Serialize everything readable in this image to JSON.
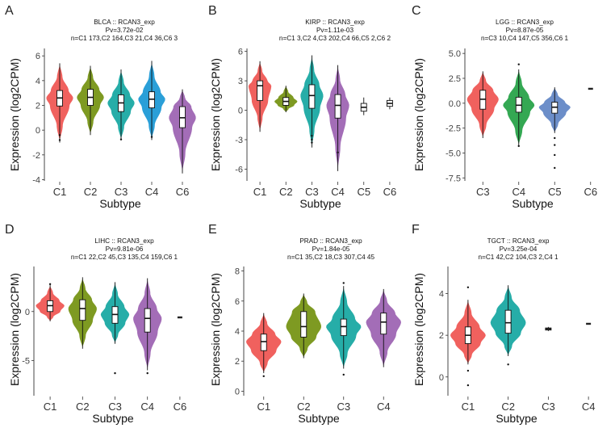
{
  "colors": {
    "C1": "#F0615E",
    "C2": "#7E9A22",
    "C3": "#26ADA8",
    "C4": "#2A9FD8",
    "C5": "#6C8EC9",
    "C6": "#A36DB7"
  },
  "chart_data": [
    {
      "panel": "A",
      "type": "violin",
      "title": "BLCA :: RCAN3_exp",
      "pvalue": "Pv=3.72e-02",
      "counts": "n=C1 173,C2 164,C3 21,C4 36,C6 3",
      "xlabel": "Subtype",
      "ylabel": "Expression (log2CPM)",
      "ylim": [
        -4.1,
        6.6
      ],
      "yticks": [
        -4,
        -2,
        0,
        2,
        4,
        6
      ],
      "categories": [
        "C1",
        "C2",
        "C3",
        "C4",
        "C6"
      ],
      "series": [
        {
          "name": "C1",
          "color": "#F0615E",
          "min": -1.0,
          "q1": 1.95,
          "median": 2.6,
          "q3": 3.2,
          "max": 5.4,
          "outliers": [
            -0.4,
            -0.8
          ]
        },
        {
          "name": "C2",
          "color": "#7E9A22",
          "min": -0.4,
          "q1": 2.0,
          "median": 2.65,
          "q3": 3.3,
          "max": 5.2,
          "outliers": []
        },
        {
          "name": "C3",
          "color": "#26ADA8",
          "min": -0.8,
          "q1": 1.5,
          "median": 2.2,
          "q3": 2.85,
          "max": 4.9,
          "outliers": [
            -0.75
          ]
        },
        {
          "name": "C4",
          "color": "#2A9FD8",
          "min": -0.8,
          "q1": 1.8,
          "median": 2.5,
          "q3": 3.1,
          "max": 5.6,
          "outliers": [
            -0.55
          ]
        },
        {
          "name": "C6",
          "color": "#A36DB7",
          "min": -3.5,
          "q1": 0.2,
          "median": 1.0,
          "q3": 1.9,
          "max": 3.3,
          "outliers": []
        }
      ]
    },
    {
      "panel": "B",
      "type": "violin",
      "title": "KIRP :: RCAN3_exp",
      "pvalue": "Pv=1.11e-03",
      "counts": "n=C1 3,C2 4,C3 202,C4 66,C5 2,C6 2",
      "xlabel": "Subtype",
      "ylabel": "Expression (log2CPM)",
      "ylim": [
        -7.2,
        6.3
      ],
      "yticks": [
        -6,
        -3,
        0,
        3,
        6
      ],
      "categories": [
        "C1",
        "C2",
        "C3",
        "C4",
        "C5",
        "C6"
      ],
      "series": [
        {
          "name": "C1",
          "color": "#F0615E",
          "min": -2.2,
          "q1": 1.0,
          "median": 2.5,
          "q3": 3.0,
          "max": 5.0,
          "outliers": []
        },
        {
          "name": "C2",
          "color": "#7E9A22",
          "min": -0.2,
          "q1": 0.5,
          "median": 0.9,
          "q3": 1.3,
          "max": 2.5,
          "outliers": []
        },
        {
          "name": "C3",
          "color": "#26ADA8",
          "min": -3.8,
          "q1": 0.2,
          "median": 1.5,
          "q3": 2.6,
          "max": 5.6,
          "outliers": [
            -2.6,
            -3.0,
            -3.3
          ]
        },
        {
          "name": "C4",
          "color": "#A36DB7",
          "min": -6.2,
          "q1": -0.8,
          "median": 0.5,
          "q3": 1.6,
          "max": 4.6,
          "outliers": [
            -4.3
          ]
        },
        {
          "name": "C5",
          "color": "#A36DB7",
          "min": -0.5,
          "q1": -0.1,
          "median": 0.3,
          "q3": 0.7,
          "max": 1.3,
          "outliers": [],
          "violin": false
        },
        {
          "name": "C6",
          "color": "#A36DB7",
          "min": 0.1,
          "q1": 0.4,
          "median": 0.7,
          "q3": 1.0,
          "max": 1.3,
          "outliers": [],
          "violin": false
        }
      ]
    },
    {
      "panel": "C",
      "type": "violin",
      "title": "LGG :: RCAN3_exp",
      "pvalue": "Pv=8.87e-05",
      "counts": "n=C3 10,C4 147,C5 356,C6 1",
      "xlabel": "Subtype",
      "ylabel": "Expression (log2CPM)",
      "ylim": [
        -7.8,
        5.5
      ],
      "yticks": [
        -7.5,
        -5.0,
        -2.5,
        0.0,
        2.5,
        5.0
      ],
      "categories": [
        "C3",
        "C4",
        "C5",
        "C6"
      ],
      "series": [
        {
          "name": "C3",
          "color": "#F0615E",
          "min": -3.5,
          "q1": -0.6,
          "median": 0.4,
          "q3": 1.3,
          "max": 3.2,
          "outliers": []
        },
        {
          "name": "C4",
          "color": "#34A853",
          "min": -4.3,
          "q1": -0.9,
          "median": -0.2,
          "q3": 0.6,
          "max": 3.4,
          "outliers": [
            -4.3,
            3.9
          ]
        },
        {
          "name": "C5",
          "color": "#6C8EC9",
          "min": -3.0,
          "q1": -1.0,
          "median": -0.4,
          "q3": 0.1,
          "max": 1.6,
          "outliers": [
            -3.5,
            -4.2,
            -5.2,
            -6.5
          ]
        },
        {
          "name": "C6",
          "color": "#6C8EC9",
          "min": 1.45,
          "q1": 1.45,
          "median": 1.45,
          "q3": 1.45,
          "max": 1.45,
          "outliers": [],
          "violin": false
        }
      ]
    },
    {
      "panel": "D",
      "type": "violin",
      "title": "LIHC :: RCAN3_exp",
      "pvalue": "Pv=9.81e-06",
      "counts": "n=C1 22,C2 45,C3 135,C4 159,C6 1",
      "xlabel": "Subtype",
      "ylabel": "Expression (log2CPM)",
      "ylim": [
        -8.6,
        4.6
      ],
      "yticks": [
        -5,
        0
      ],
      "categories": [
        "C1",
        "C2",
        "C3",
        "C4",
        "C6"
      ],
      "series": [
        {
          "name": "C1",
          "color": "#F0615E",
          "min": -1.0,
          "q1": 0.0,
          "median": 0.6,
          "q3": 1.1,
          "max": 2.7,
          "outliers": [
            2.8
          ]
        },
        {
          "name": "C2",
          "color": "#7E9A22",
          "min": -3.8,
          "q1": -0.9,
          "median": 0.3,
          "q3": 1.2,
          "max": 3.5,
          "outliers": []
        },
        {
          "name": "C3",
          "color": "#26ADA8",
          "min": -3.3,
          "q1": -1.2,
          "median": -0.3,
          "q3": 0.5,
          "max": 3.0,
          "outliers": [
            -6.3
          ]
        },
        {
          "name": "C4",
          "color": "#A36DB7",
          "min": -6.0,
          "q1": -2.1,
          "median": -0.7,
          "q3": 0.3,
          "max": 3.4,
          "outliers": [
            -6.3
          ]
        },
        {
          "name": "C6",
          "color": "#A36DB7",
          "min": -0.6,
          "q1": -0.6,
          "median": -0.6,
          "q3": -0.6,
          "max": -0.6,
          "outliers": [],
          "violin": false
        }
      ]
    },
    {
      "panel": "E",
      "type": "violin",
      "title": "PRAD :: RCAN3_exp",
      "pvalue": "Pv=1.84e-05",
      "counts": "n=C1 35,C2 18,C3 307,C4 45",
      "xlabel": "Subtype",
      "ylabel": "Expression (log2CPM)",
      "ylim": [
        -0.3,
        8.3
      ],
      "yticks": [
        0,
        2,
        4,
        6,
        8
      ],
      "categories": [
        "C1",
        "C2",
        "C3",
        "C4"
      ],
      "series": [
        {
          "name": "C1",
          "color": "#F0615E",
          "min": 1.2,
          "q1": 2.7,
          "median": 3.3,
          "q3": 3.8,
          "max": 5.2,
          "outliers": [
            1.0
          ]
        },
        {
          "name": "C2",
          "color": "#7E9A22",
          "min": 2.2,
          "q1": 3.6,
          "median": 4.3,
          "q3": 5.3,
          "max": 6.5,
          "outliers": []
        },
        {
          "name": "C3",
          "color": "#26ADA8",
          "min": 1.5,
          "q1": 3.7,
          "median": 4.3,
          "q3": 4.8,
          "max": 7.0,
          "outliers": [
            1.1,
            7.2
          ]
        },
        {
          "name": "C4",
          "color": "#A36DB7",
          "min": 1.6,
          "q1": 3.8,
          "median": 4.6,
          "q3": 5.2,
          "max": 6.8,
          "outliers": []
        }
      ]
    },
    {
      "panel": "F",
      "type": "violin",
      "title": "TGCT :: RCAN3_exp",
      "pvalue": "Pv=3.25e-04",
      "counts": "n=C1 42,C2 104,C3 2,C4 1",
      "xlabel": "Subtype",
      "ylabel": "Expression (log2CPM)",
      "ylim": [
        -0.9,
        5.3
      ],
      "yticks": [
        0,
        2,
        4
      ],
      "categories": [
        "C1",
        "C2",
        "C3",
        "C4"
      ],
      "series": [
        {
          "name": "C1",
          "color": "#F0615E",
          "min": 0.6,
          "q1": 1.6,
          "median": 2.0,
          "q3": 2.4,
          "max": 3.7,
          "outliers": [
            0.3,
            4.3,
            -0.4
          ]
        },
        {
          "name": "C2",
          "color": "#26ADA8",
          "min": 1.0,
          "q1": 2.1,
          "median": 2.6,
          "q3": 3.2,
          "max": 4.4,
          "outliers": [
            0.6
          ]
        },
        {
          "name": "C3",
          "color": "#26ADA8",
          "min": 2.2,
          "q1": 2.25,
          "median": 2.3,
          "q3": 2.35,
          "max": 2.4,
          "outliers": [],
          "violin": false
        },
        {
          "name": "C4",
          "color": "#26ADA8",
          "min": 2.55,
          "q1": 2.55,
          "median": 2.55,
          "q3": 2.55,
          "max": 2.55,
          "outliers": [],
          "violin": false
        }
      ]
    }
  ]
}
